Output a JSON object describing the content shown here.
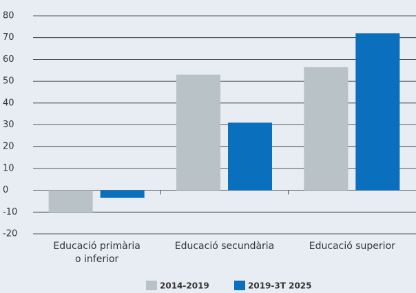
{
  "chart_data": {
    "type": "bar",
    "categories": [
      "Educació primària\no inferior",
      "Educació secundària",
      "Educació superior"
    ],
    "series": [
      {
        "name": "2014-2019",
        "color": "#b9c3c7",
        "values": [
          -10,
          53,
          56.5
        ]
      },
      {
        "name": "2019-3T 2025",
        "color": "#0a6fbd",
        "values": [
          -3.5,
          31,
          72
        ]
      }
    ],
    "ylim": [
      -20,
      80
    ],
    "yticks": [
      -20,
      -10,
      0,
      10,
      20,
      30,
      40,
      50,
      60,
      70,
      80
    ],
    "grid": true
  }
}
